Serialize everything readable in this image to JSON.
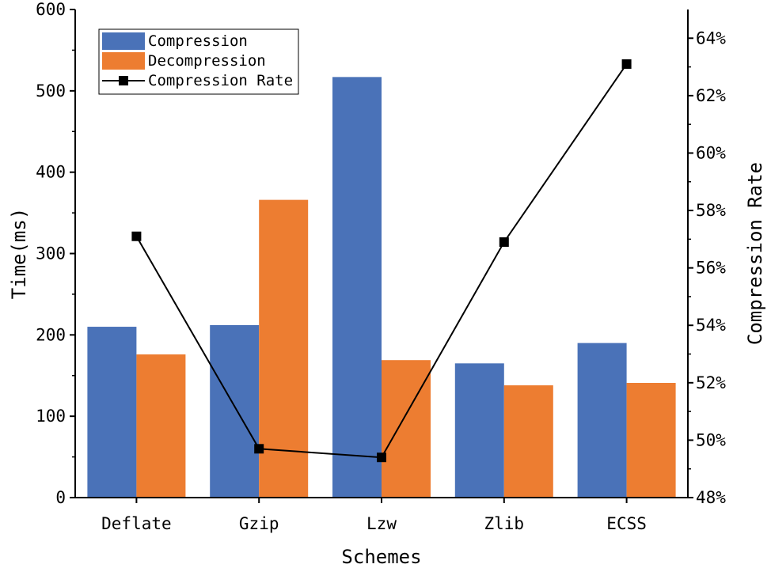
{
  "chart_data": {
    "type": "bar",
    "categories": [
      "Deflate",
      "Gzip",
      "Lzw",
      "Zlib",
      "ECSS"
    ],
    "series": [
      {
        "name": "Compression",
        "kind": "bar",
        "axis": "left",
        "color": "#4a72b8",
        "values": [
          210,
          212,
          517,
          165,
          190
        ]
      },
      {
        "name": "Decompression",
        "kind": "bar",
        "axis": "left",
        "color": "#ed7d31",
        "values": [
          176,
          366,
          169,
          138,
          141
        ]
      },
      {
        "name": "Compression Rate",
        "kind": "line",
        "axis": "right",
        "color": "#000000",
        "values": [
          57.1,
          49.7,
          49.4,
          56.9,
          63.1
        ]
      }
    ],
    "xlabel": "Schemes",
    "ylabel": "Time(ms)",
    "y2label": "Compression Rate",
    "ylim": [
      0,
      600
    ],
    "yticks": [
      0,
      100,
      200,
      300,
      400,
      500,
      600
    ],
    "y2lim": [
      48,
      65
    ],
    "y2ticks": [
      48,
      50,
      52,
      54,
      56,
      58,
      60,
      62,
      64
    ],
    "y2tick_suffix": "%",
    "legend_position": "top-left"
  }
}
